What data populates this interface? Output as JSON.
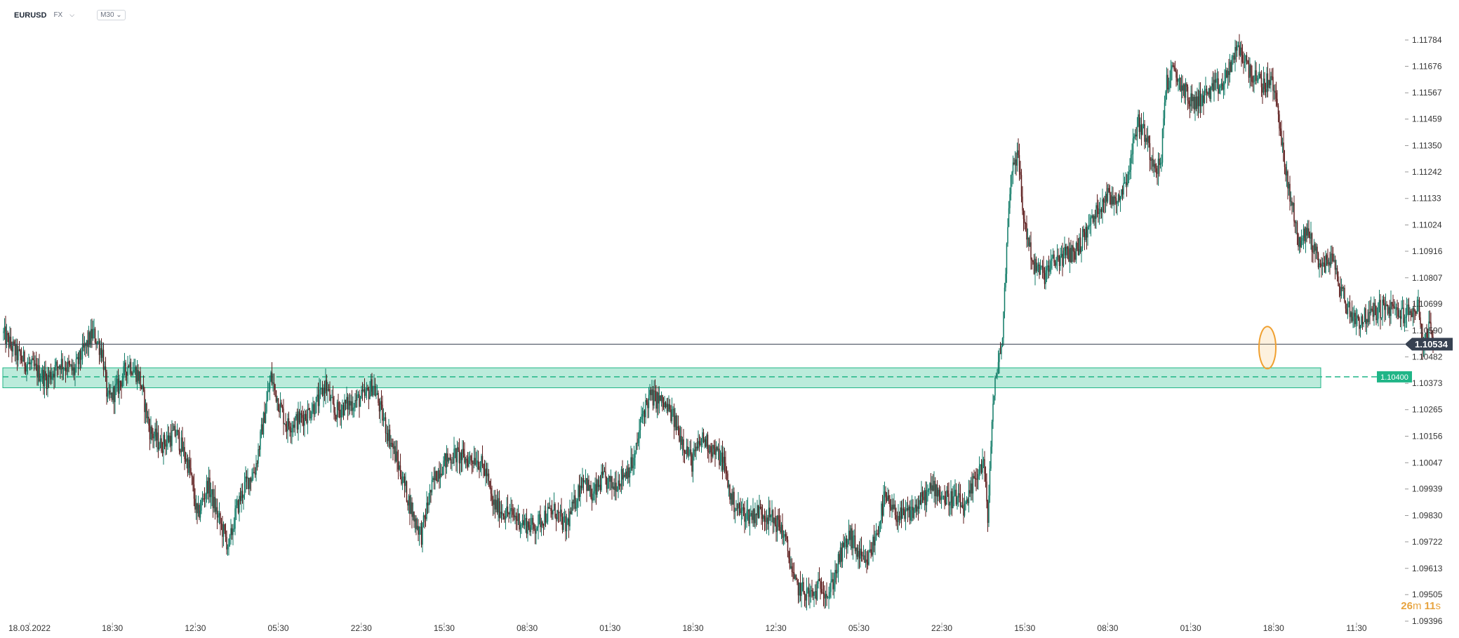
{
  "header": {
    "symbol": "EURUSD",
    "market": "FX",
    "timeframe": "M30"
  },
  "colors": {
    "up": "#0f7a66",
    "down": "#5b1a1a",
    "zone_fill": "#9ee3cc",
    "zone_stroke": "#20b587",
    "level": "#20b587",
    "current": "#374151",
    "marker": "#f0a030"
  },
  "chart_data": {
    "type": "candlestick",
    "ylim": [
      1.09396,
      1.11784
    ],
    "y_ticks": [
      "1.11784",
      "1.11676",
      "1.11567",
      "1.11459",
      "1.11350",
      "1.11242",
      "1.11133",
      "1.11024",
      "1.10916",
      "1.10807",
      "1.10699",
      "1.10590",
      "1.10482",
      "1.10373",
      "1.10265",
      "1.10156",
      "1.10047",
      "1.09939",
      "1.09830",
      "1.09722",
      "1.09613",
      "1.09505",
      "1.09396"
    ],
    "x_ticks": [
      "18.03.2022",
      "18:30",
      "12:30",
      "05:30",
      "22:30",
      "15:30",
      "08:30",
      "01:30",
      "18:30",
      "12:30",
      "05:30",
      "22:30",
      "15:30",
      "08:30",
      "01:30",
      "18:30",
      "11:30"
    ],
    "current_price": {
      "value": 1.10534,
      "label": "1.10534"
    },
    "support_level": {
      "value": 1.104,
      "label": "1.10400"
    },
    "support_zone": [
      1.10355,
      1.10437
    ],
    "path": [
      [
        0,
        1.1058
      ],
      [
        14,
        1.1049
      ],
      [
        28,
        1.1044
      ],
      [
        42,
        1.1039
      ],
      [
        55,
        1.1046
      ],
      [
        68,
        1.1042
      ],
      [
        75,
        1.1049
      ],
      [
        86,
        1.1058
      ],
      [
        95,
        1.105
      ],
      [
        100,
        1.103
      ],
      [
        110,
        1.1036
      ],
      [
        120,
        1.1046
      ],
      [
        130,
        1.104
      ],
      [
        140,
        1.1018
      ],
      [
        150,
        1.1012
      ],
      [
        165,
        1.1017
      ],
      [
        178,
        1.1002
      ],
      [
        185,
        1.0982
      ],
      [
        195,
        1.0996
      ],
      [
        205,
        1.0982
      ],
      [
        215,
        1.097
      ],
      [
        222,
        1.0985
      ],
      [
        230,
        1.0995
      ],
      [
        240,
        1.1002
      ],
      [
        248,
        1.1022
      ],
      [
        255,
        1.104
      ],
      [
        262,
        1.103
      ],
      [
        270,
        1.102
      ],
      [
        280,
        1.1022
      ],
      [
        290,
        1.1025
      ],
      [
        300,
        1.103
      ],
      [
        307,
        1.1037
      ],
      [
        315,
        1.1025
      ],
      [
        325,
        1.1028
      ],
      [
        335,
        1.103
      ],
      [
        345,
        1.1032
      ],
      [
        352,
        1.1037
      ],
      [
        360,
        1.1025
      ],
      [
        370,
        1.1012
      ],
      [
        380,
        1.0998
      ],
      [
        390,
        1.0983
      ],
      [
        398,
        1.0975
      ],
      [
        405,
        1.099
      ],
      [
        412,
        1.1
      ],
      [
        420,
        1.1005
      ],
      [
        430,
        1.1008
      ],
      [
        440,
        1.1006
      ],
      [
        450,
        1.1007
      ],
      [
        460,
        1.1
      ],
      [
        465,
        1.0988
      ],
      [
        475,
        1.0985
      ],
      [
        485,
        1.0983
      ],
      [
        495,
        1.098
      ],
      [
        505,
        1.0978
      ],
      [
        515,
        1.0983
      ],
      [
        525,
        1.0985
      ],
      [
        535,
        1.0978
      ],
      [
        545,
        1.099
      ],
      [
        552,
        1.1
      ],
      [
        560,
        1.099
      ],
      [
        570,
        1.0998
      ],
      [
        580,
        1.0995
      ],
      [
        590,
        1.1
      ],
      [
        600,
        1.1005
      ],
      [
        608,
        1.1025
      ],
      [
        615,
        1.1032
      ],
      [
        625,
        1.103
      ],
      [
        635,
        1.1025
      ],
      [
        645,
        1.1015
      ],
      [
        655,
        1.1005
      ],
      [
        665,
        1.1015
      ],
      [
        675,
        1.101
      ],
      [
        685,
        1.1005
      ],
      [
        692,
        1.099
      ],
      [
        700,
        1.0985
      ],
      [
        710,
        1.0983
      ],
      [
        720,
        1.0985
      ],
      [
        730,
        1.0982
      ],
      [
        740,
        1.0978
      ],
      [
        748,
        1.0965
      ],
      [
        752,
        1.0955
      ],
      [
        760,
        1.0952
      ],
      [
        770,
        1.095
      ],
      [
        778,
        1.0955
      ],
      [
        785,
        1.095
      ],
      [
        795,
        1.0965
      ],
      [
        805,
        1.0975
      ],
      [
        812,
        1.0968
      ],
      [
        820,
        1.0962
      ],
      [
        830,
        1.0975
      ],
      [
        838,
        1.099
      ],
      [
        845,
        1.0985
      ],
      [
        855,
        1.0982
      ],
      [
        865,
        1.0985
      ],
      [
        875,
        1.099
      ],
      [
        885,
        1.0995
      ],
      [
        895,
        1.099
      ],
      [
        905,
        1.099
      ],
      [
        915,
        1.0985
      ],
      [
        925,
        1.1
      ],
      [
        932,
        1.1005
      ],
      [
        936,
        1.0982
      ],
      [
        940,
        1.1022
      ],
      [
        945,
        1.1045
      ],
      [
        950,
        1.1055
      ],
      [
        955,
        1.1105
      ],
      [
        960,
        1.113
      ],
      [
        965,
        1.113
      ],
      [
        970,
        1.1105
      ],
      [
        975,
        1.1095
      ],
      [
        980,
        1.1085
      ],
      [
        990,
        1.1082
      ],
      [
        1000,
        1.1088
      ],
      [
        1010,
        1.109
      ],
      [
        1020,
        1.1092
      ],
      [
        1030,
        1.11
      ],
      [
        1040,
        1.1108
      ],
      [
        1048,
        1.1115
      ],
      [
        1055,
        1.1113
      ],
      [
        1062,
        1.1115
      ],
      [
        1070,
        1.1125
      ],
      [
        1078,
        1.1145
      ],
      [
        1085,
        1.114
      ],
      [
        1092,
        1.113
      ],
      [
        1100,
        1.1125
      ],
      [
        1105,
        1.116
      ],
      [
        1112,
        1.1165
      ],
      [
        1120,
        1.116
      ],
      [
        1130,
        1.1152
      ],
      [
        1140,
        1.1155
      ],
      [
        1150,
        1.1158
      ],
      [
        1160,
        1.116
      ],
      [
        1168,
        1.117
      ],
      [
        1175,
        1.1175
      ],
      [
        1182,
        1.1168
      ],
      [
        1190,
        1.1162
      ],
      [
        1198,
        1.116
      ],
      [
        1205,
        1.1162
      ],
      [
        1212,
        1.115
      ],
      [
        1218,
        1.1125
      ],
      [
        1225,
        1.111
      ],
      [
        1232,
        1.1095
      ],
      [
        1240,
        1.11
      ],
      [
        1248,
        1.109
      ],
      [
        1255,
        1.1085
      ],
      [
        1262,
        1.109
      ],
      [
        1270,
        1.1078
      ],
      [
        1278,
        1.1068
      ],
      [
        1288,
        1.1063
      ],
      [
        1298,
        1.1065
      ],
      [
        1308,
        1.1068
      ],
      [
        1318,
        1.1068
      ],
      [
        1328,
        1.1066
      ],
      [
        1338,
        1.1066
      ],
      [
        1345,
        1.107
      ],
      [
        1350,
        1.105
      ],
      [
        1355,
        1.1062
      ],
      [
        1359,
        1.105
      ]
    ]
  },
  "timer": {
    "minutes": "26",
    "m_unit": "m",
    "seconds": "11",
    "s_unit": "s"
  }
}
